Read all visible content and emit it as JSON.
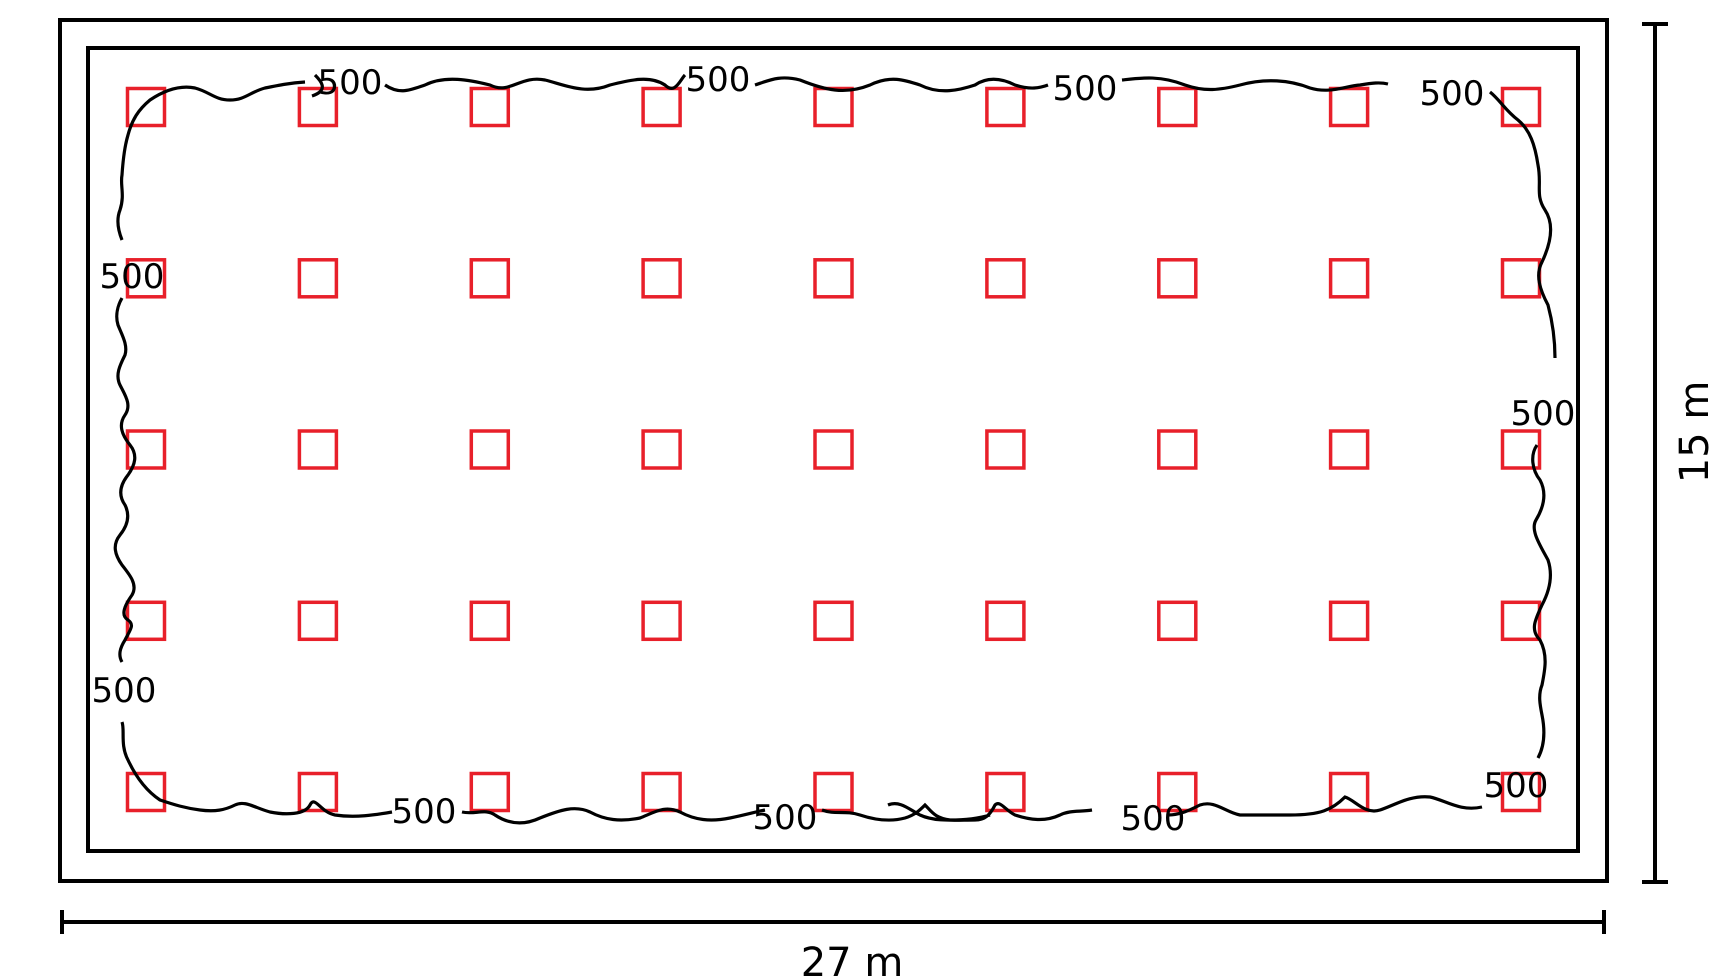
{
  "diagram": {
    "width_dimension": "27 m",
    "height_dimension": "15 m",
    "contour_label": "500",
    "luminaire_grid": {
      "columns": 9,
      "rows": 5
    },
    "colors": {
      "luminaire": "#e8202a",
      "outline": "#000000",
      "contour": "#000000"
    }
  }
}
